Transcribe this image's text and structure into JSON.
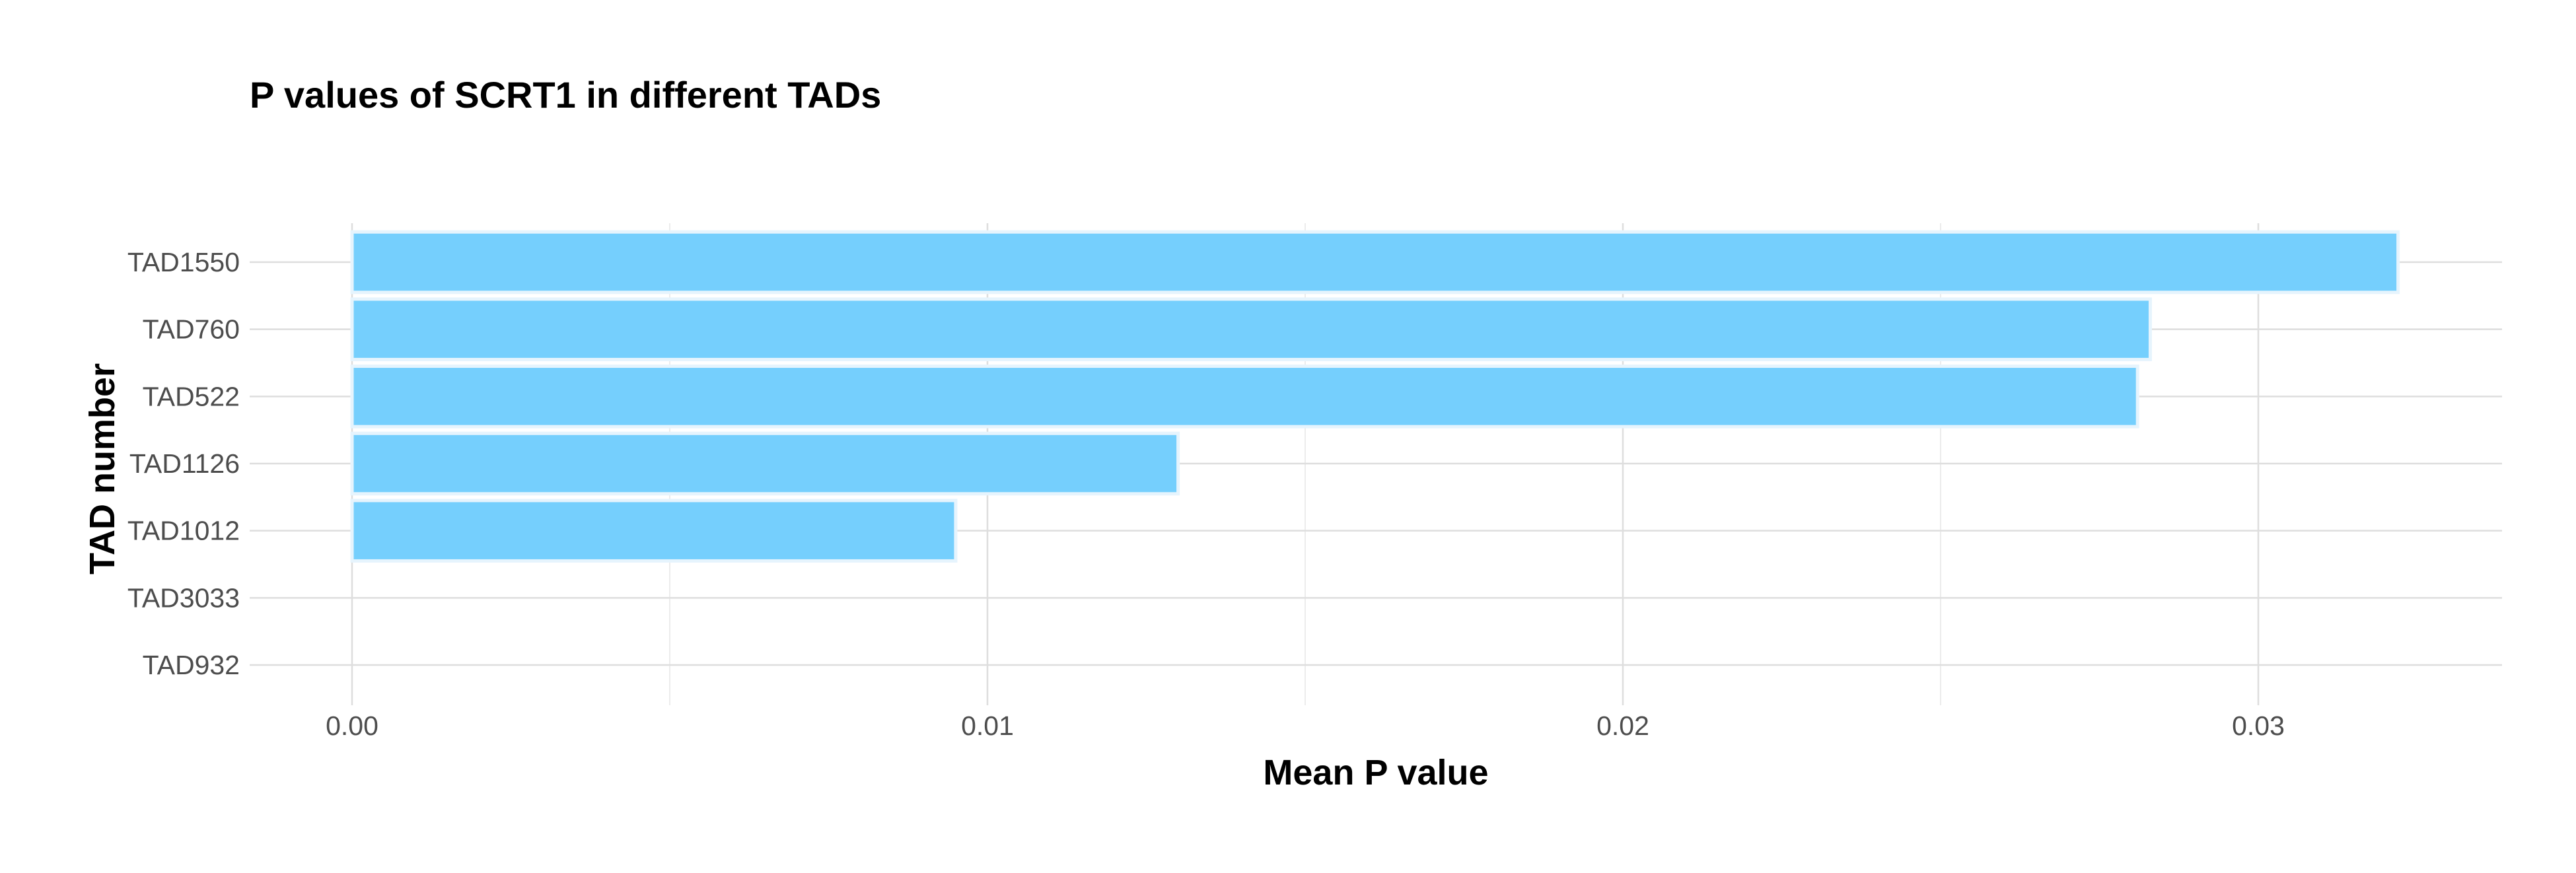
{
  "chart_data": {
    "type": "bar",
    "orientation": "horizontal",
    "title": "P values of SCRT1 in different TADs",
    "xlabel": "Mean P value",
    "ylabel": "TAD number",
    "categories": [
      "TAD1550",
      "TAD760",
      "TAD522",
      "TAD1126",
      "TAD1012",
      "TAD3033",
      "TAD932"
    ],
    "values": [
      0.0322,
      0.0283,
      0.0281,
      0.013,
      0.0095,
      0,
      0
    ],
    "xlim": [
      -0.0016,
      0.0338
    ],
    "x_ticks": [
      0,
      0.01,
      0.02,
      0.03
    ],
    "x_tick_labels": [
      "0.00",
      "0.01",
      "0.02",
      "0.03"
    ],
    "x_minor_ticks": [
      0.005,
      0.015,
      0.025
    ],
    "grid": true,
    "legend": "none",
    "bar_color": "#75CFFD",
    "bar_outline_color": "#E6F4FD"
  }
}
